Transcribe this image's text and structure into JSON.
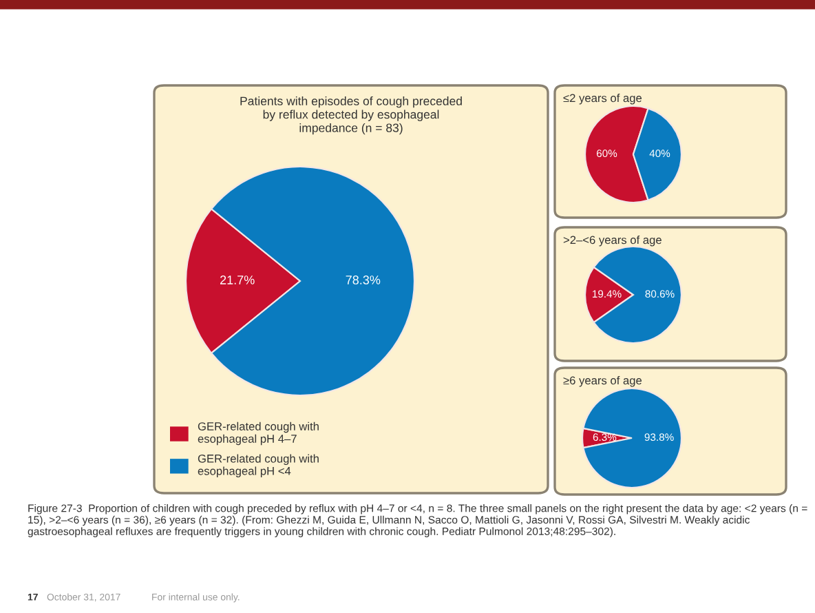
{
  "chart_data": [
    {
      "type": "pie",
      "title": "Patients with episodes of cough preceded\nby reflux detected by esophageal\nimpedance (n = 83)",
      "categories": [
        "GER-related cough with\nesophageal pH 4–7",
        "GER-related cough with\nesophageal pH <4"
      ],
      "values": [
        21.7,
        78.3
      ],
      "value_labels": [
        "21.7%",
        "78.3%"
      ],
      "colors": [
        "#c8102e",
        "#0a7bbf"
      ],
      "legend": "bottom left",
      "annotations": [
        "Figure 27-3  Proportion of children with cough preceded by reflux with pH 4–7 or <4, n = 8. The three small panels on the right present the data by age: <2 years (n = 15), >2–<6 years (n = 36), ≥6 years (n = 32). (From: Ghezzi M, Guida E, Ullmann N, Sacco O, Mattioli G, Jasonni V, Rossi GA, Silvestri M. Weakly acidic gastroesophageal refluxes are frequently triggers in young children with chronic cough. Pediatr Pulmonol 2013;48:295–302).",
        "17",
        "October 31, 2017",
        "For internal use only."
      ]
    },
    {
      "type": "pie",
      "title": "≤2 years of age",
      "categories": [
        null,
        null
      ],
      "values": [
        60,
        40
      ],
      "value_labels": [
        "60%",
        "40%"
      ],
      "colors": [
        "#c8102e",
        "#0a7bbf"
      ]
    },
    {
      "type": "pie",
      "title": ">2–<6 years of age",
      "categories": [
        null,
        null
      ],
      "values": [
        19.4,
        80.6
      ],
      "value_labels": [
        "19.4%",
        "80.6%"
      ],
      "colors": [
        "#c8102e",
        "#0a7bbf"
      ]
    },
    {
      "type": "pie",
      "title": "≥6 years of age",
      "categories": [
        null,
        null
      ],
      "values": [
        6.3,
        93.8
      ],
      "value_labels": [
        "6.3%",
        "93.8%"
      ],
      "colors": [
        "#c8102e",
        "#0a7bbf"
      ]
    }
  ]
}
